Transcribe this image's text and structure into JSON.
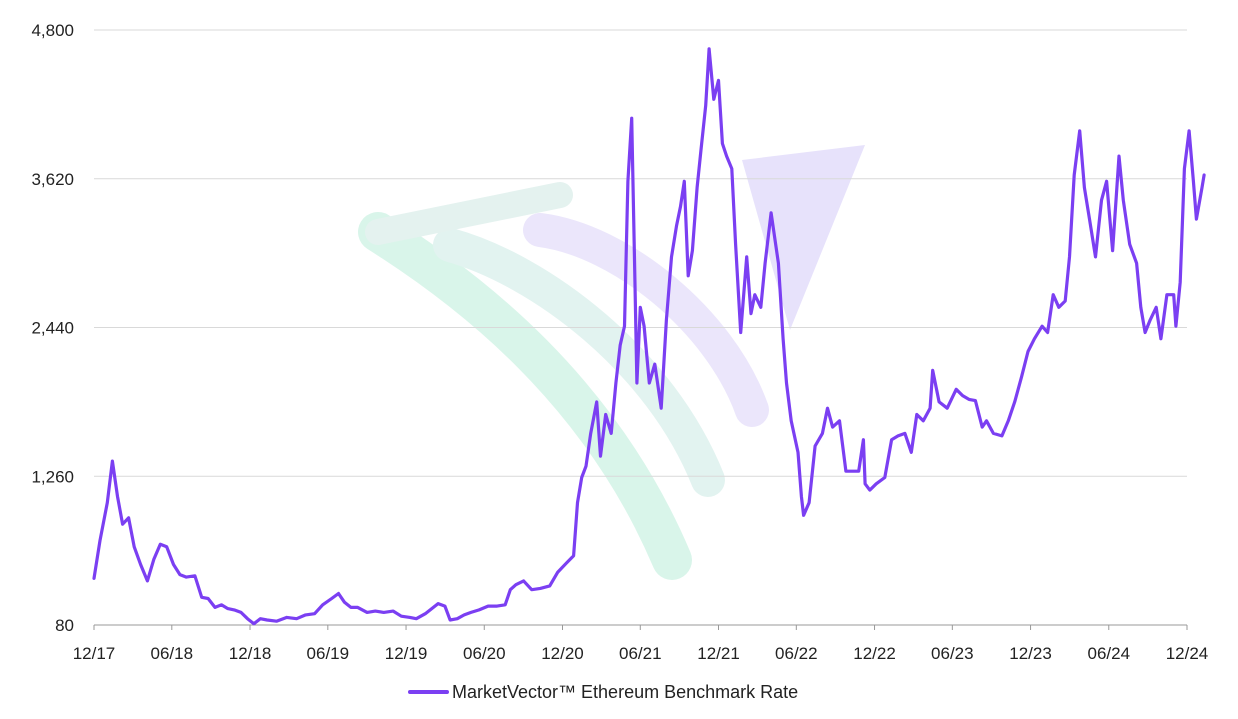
{
  "chart_data": {
    "type": "line",
    "title": "",
    "xlabel": "",
    "ylabel": "",
    "ylim": [
      80,
      4800
    ],
    "y_ticks": [
      80,
      1260,
      2440,
      3620,
      4800
    ],
    "y_tick_labels": [
      "80",
      "1,260",
      "2,440",
      "3,620",
      "4,800"
    ],
    "x_range": [
      "2017-12",
      "2024-12"
    ],
    "x_tick_labels": [
      "12/17",
      "06/18",
      "12/18",
      "06/19",
      "12/19",
      "06/20",
      "12/20",
      "06/21",
      "12/21",
      "06/22",
      "12/22",
      "06/23",
      "12/23",
      "06/24",
      "12/24"
    ],
    "grid": "horizontal",
    "legend": {
      "position": "bottom-center"
    },
    "colors": {
      "series": "#7b3ff2",
      "grid": "#d9d9d9",
      "axis": "#999999",
      "watermark_green": "#d9f5ea",
      "watermark_purple": "#e7e2fb"
    },
    "series": [
      {
        "name": "MarketVector™ Ethereum Benchmark Rate",
        "x": [
          "2017-12-01",
          "2017-12-15",
          "2018-01-01",
          "2018-01-13",
          "2018-01-25",
          "2018-02-06",
          "2018-02-20",
          "2018-03-05",
          "2018-03-20",
          "2018-04-05",
          "2018-04-20",
          "2018-05-05",
          "2018-05-20",
          "2018-06-05",
          "2018-06-20",
          "2018-07-05",
          "2018-07-25",
          "2018-08-10",
          "2018-08-25",
          "2018-09-10",
          "2018-09-25",
          "2018-10-10",
          "2018-10-25",
          "2018-11-10",
          "2018-11-25",
          "2018-12-10",
          "2018-12-25",
          "2019-01-10",
          "2019-02-01",
          "2019-02-25",
          "2019-03-20",
          "2019-04-10",
          "2019-05-01",
          "2019-05-20",
          "2019-06-10",
          "2019-06-26",
          "2019-07-10",
          "2019-07-25",
          "2019-08-10",
          "2019-09-01",
          "2019-09-20",
          "2019-10-10",
          "2019-11-01",
          "2019-11-20",
          "2019-12-10",
          "2019-12-25",
          "2020-01-15",
          "2020-02-14",
          "2020-03-01",
          "2020-03-13",
          "2020-03-30",
          "2020-04-15",
          "2020-05-01",
          "2020-05-20",
          "2020-06-10",
          "2020-07-01",
          "2020-07-20",
          "2020-08-01",
          "2020-08-14",
          "2020-09-01",
          "2020-09-20",
          "2020-10-10",
          "2020-11-01",
          "2020-11-20",
          "2020-12-10",
          "2020-12-27",
          "2021-01-05",
          "2021-01-15",
          "2021-01-25",
          "2021-02-05",
          "2021-02-19",
          "2021-02-28",
          "2021-03-12",
          "2021-03-25",
          "2021-04-05",
          "2021-04-15",
          "2021-04-25",
          "2021-05-03",
          "2021-05-12",
          "2021-05-19",
          "2021-05-24",
          "2021-06-01",
          "2021-06-10",
          "2021-06-22",
          "2021-07-05",
          "2021-07-20",
          "2021-08-01",
          "2021-08-13",
          "2021-08-25",
          "2021-09-03",
          "2021-09-12",
          "2021-09-21",
          "2021-10-01",
          "2021-10-12",
          "2021-10-21",
          "2021-11-01",
          "2021-11-09",
          "2021-11-20",
          "2021-12-01",
          "2021-12-10",
          "2021-12-20",
          "2022-01-01",
          "2022-01-10",
          "2022-01-22",
          "2022-02-05",
          "2022-02-15",
          "2022-02-24",
          "2022-03-10",
          "2022-03-20",
          "2022-04-03",
          "2022-04-20",
          "2022-05-01",
          "2022-05-09",
          "2022-05-20",
          "2022-06-05",
          "2022-06-13",
          "2022-06-18",
          "2022-07-01",
          "2022-07-15",
          "2022-08-01",
          "2022-08-13",
          "2022-08-25",
          "2022-09-10",
          "2022-09-25",
          "2022-10-10",
          "2022-10-25",
          "2022-11-05",
          "2022-11-09",
          "2022-11-20",
          "2022-12-05",
          "2022-12-25",
          "2023-01-10",
          "2023-01-25",
          "2023-02-10",
          "2023-02-25",
          "2023-03-10",
          "2023-03-25",
          "2023-04-10",
          "2023-04-16",
          "2023-05-01",
          "2023-05-20",
          "2023-06-10",
          "2023-06-25",
          "2023-07-10",
          "2023-07-25",
          "2023-08-10",
          "2023-08-20",
          "2023-09-05",
          "2023-09-25",
          "2023-10-10",
          "2023-10-25",
          "2023-11-10",
          "2023-11-25",
          "2023-12-10",
          "2023-12-28",
          "2024-01-10",
          "2024-01-23",
          "2024-02-05",
          "2024-02-20",
          "2024-03-01",
          "2024-03-12",
          "2024-03-25",
          "2024-04-05",
          "2024-04-17",
          "2024-05-01",
          "2024-05-15",
          "2024-05-27",
          "2024-06-10",
          "2024-06-25",
          "2024-07-05",
          "2024-07-20",
          "2024-08-05",
          "2024-08-15",
          "2024-08-25",
          "2024-09-06",
          "2024-09-20",
          "2024-10-01",
          "2024-10-15",
          "2024-10-31",
          "2024-11-05",
          "2024-11-15",
          "2024-11-25",
          "2024-12-06",
          "2024-12-16",
          "2024-12-23",
          "2025-01-05",
          "2025-01-10"
        ],
        "y": [
          450,
          750,
          1050,
          1380,
          1100,
          880,
          930,
          700,
          560,
          430,
          600,
          720,
          700,
          560,
          480,
          460,
          470,
          300,
          290,
          220,
          240,
          210,
          200,
          180,
          130,
          90,
          130,
          120,
          110,
          140,
          130,
          160,
          170,
          240,
          290,
          330,
          260,
          220,
          220,
          180,
          190,
          180,
          190,
          150,
          140,
          130,
          170,
          250,
          230,
          120,
          130,
          160,
          180,
          200,
          230,
          230,
          240,
          360,
          400,
          430,
          360,
          370,
          390,
          500,
          570,
          630,
          1050,
          1250,
          1340,
          1600,
          1850,
          1420,
          1750,
          1600,
          2000,
          2300,
          2450,
          3600,
          4100,
          2900,
          2000,
          2600,
          2450,
          2000,
          2150,
          1800,
          2500,
          3000,
          3250,
          3400,
          3600,
          2850,
          3050,
          3550,
          3850,
          4200,
          4650,
          4250,
          4400,
          3900,
          3800,
          3700,
          3100,
          2400,
          3000,
          2550,
          2700,
          2600,
          2950,
          3350,
          2950,
          2350,
          2000,
          1700,
          1450,
          1100,
          950,
          1050,
          1500,
          1600,
          1800,
          1650,
          1700,
          1300,
          1300,
          1300,
          1550,
          1200,
          1150,
          1200,
          1250,
          1550,
          1580,
          1600,
          1450,
          1750,
          1700,
          1800,
          2100,
          1850,
          1800,
          1950,
          1900,
          1870,
          1860,
          1650,
          1700,
          1600,
          1580,
          1700,
          1850,
          2050,
          2250,
          2350,
          2450,
          2400,
          2700,
          2600,
          2650,
          3000,
          3650,
          4000,
          3550,
          3300,
          3000,
          3450,
          3600,
          3050,
          3800,
          3450,
          3100,
          2950,
          2600,
          2400,
          2500,
          2600,
          2350,
          2700,
          2700,
          2450,
          2800,
          3700,
          4000,
          3600,
          3300,
          3550,
          3650
        ]
      }
    ]
  }
}
